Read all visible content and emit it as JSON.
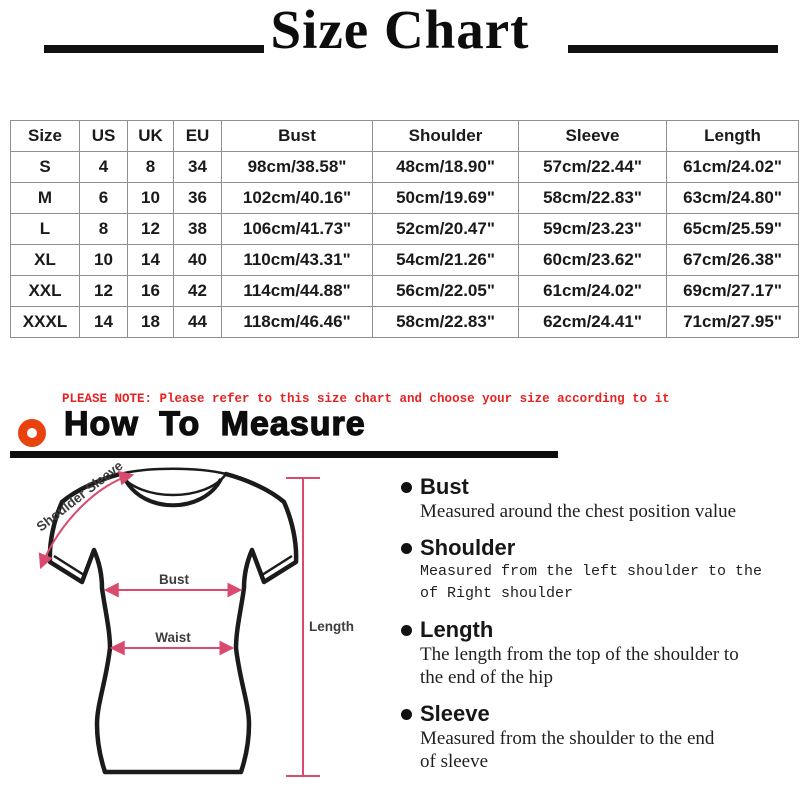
{
  "page": {
    "background": "#ffffff"
  },
  "title": {
    "text": "Size Chart",
    "rule_color": "#111111"
  },
  "size_table": {
    "headers": [
      "Size",
      "US",
      "UK",
      "EU",
      "Bust",
      "Shoulder",
      "Sleeve",
      "Length"
    ],
    "rows": [
      [
        "S",
        "4",
        "8",
        "34",
        "98cm/38.58\"",
        "48cm/18.90\"",
        "57cm/22.44\"",
        "61cm/24.02\""
      ],
      [
        "M",
        "6",
        "10",
        "36",
        "102cm/40.16\"",
        "50cm/19.69\"",
        "58cm/22.83\"",
        "63cm/24.80\""
      ],
      [
        "L",
        "8",
        "12",
        "38",
        "106cm/41.73\"",
        "52cm/20.47\"",
        "59cm/23.23\"",
        "65cm/25.59\""
      ],
      [
        "XL",
        "10",
        "14",
        "40",
        "110cm/43.31\"",
        "54cm/21.26\"",
        "60cm/23.62\"",
        "67cm/26.38\""
      ],
      [
        "XXL",
        "12",
        "16",
        "42",
        "114cm/44.88\"",
        "56cm/22.05\"",
        "61cm/24.02\"",
        "69cm/27.17\""
      ],
      [
        "XXXL",
        "14",
        "18",
        "44",
        "118cm/46.46\"",
        "58cm/22.83\"",
        "62cm/24.41\"",
        "71cm/27.95\""
      ]
    ],
    "border_color": "#8f8f8f",
    "text_color": "#1a1a1a"
  },
  "note": {
    "text": "PLEASE NOTE: Please refer to this size chart and choose your size according to it",
    "color": "#e62222"
  },
  "how_to_measure": {
    "heading": "How To Measure",
    "ring_color": "#e8430e",
    "underline_color": "#0d0d0d"
  },
  "diagram": {
    "labels": {
      "shoulder_sleeve": "Shoulder Sleeve",
      "bust": "Bust",
      "waist": "Waist",
      "length": "Length"
    },
    "arrow_color": "#d84a6e",
    "outline_color": "#1b1b1b",
    "label_color": "#3d3d3d"
  },
  "measure_guide": {
    "items": [
      {
        "term": "Bust",
        "desc": "Measured around the chest position value",
        "style": "serif"
      },
      {
        "term": "Shoulder",
        "desc": "Measured from the left shoulder to the\nof Right shoulder",
        "style": "mono"
      },
      {
        "term": "Length",
        "desc": "The length from the top of the shoulder to\nthe end of the hip",
        "style": "serif"
      },
      {
        "term": "Sleeve",
        "desc": "Measured from the shoulder to the end\nof sleeve",
        "style": "serif"
      }
    ]
  }
}
